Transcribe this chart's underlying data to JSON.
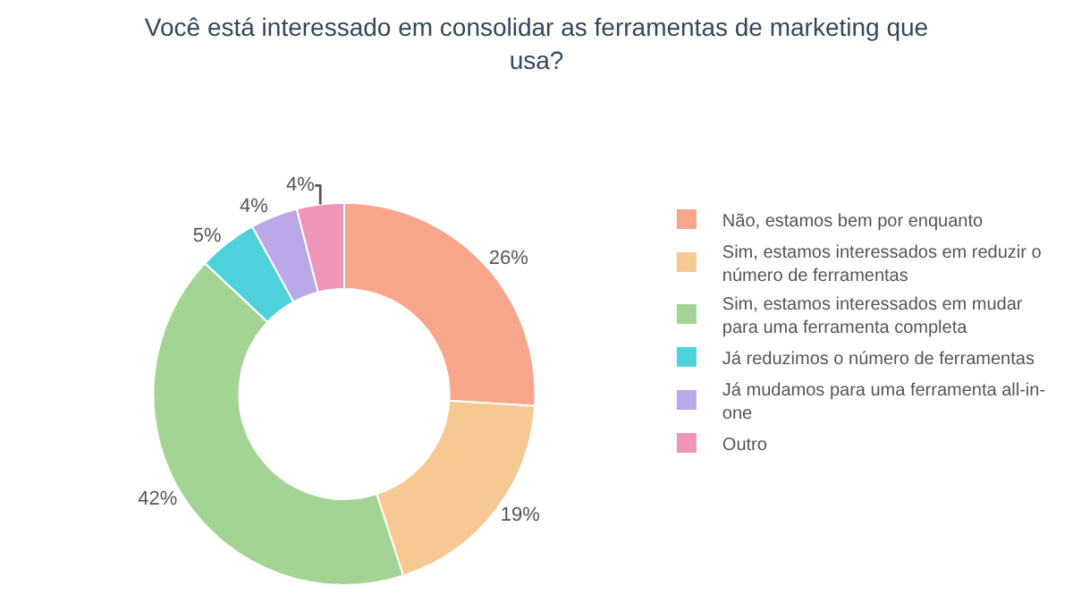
{
  "chart_data": {
    "type": "donut",
    "title": "Você está interessado em consolidar as ferramentas de marketing que usa?",
    "categories": [
      "Não, estamos bem por enquanto",
      "Sim, estamos interessados em reduzir o número de ferramentas",
      "Sim, estamos interessados em mudar para uma ferramenta completa",
      "Já reduzimos o número de ferramentas",
      "Já mudamos para uma ferramenta all-in-one",
      "Outro"
    ],
    "values": [
      26,
      19,
      42,
      5,
      4,
      4
    ],
    "colors": [
      "#f8a68b",
      "#f6c993",
      "#a4d494",
      "#4fd1dc",
      "#baa8e9",
      "#ee95b9"
    ],
    "value_labels": [
      "26%",
      "19%",
      "42%",
      "5%",
      "4%",
      "4%"
    ],
    "legend": "right"
  }
}
